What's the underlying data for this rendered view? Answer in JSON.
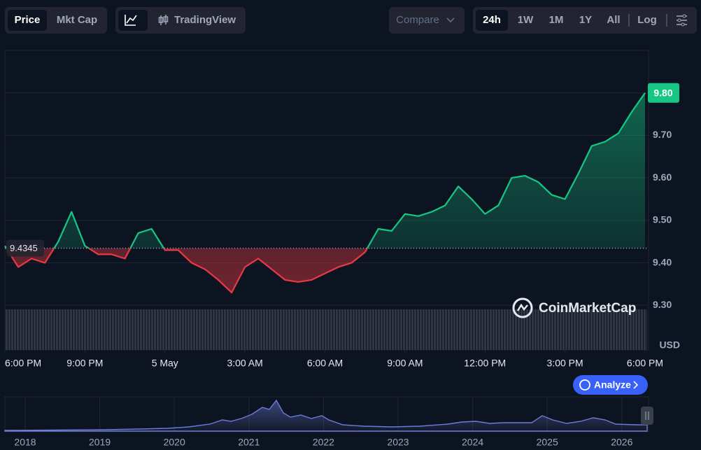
{
  "toolbar": {
    "price": "Price",
    "mkt_cap": "Mkt Cap",
    "tradingview": "TradingView",
    "compare": "Compare",
    "ranges": [
      "24h",
      "1W",
      "1M",
      "1Y",
      "All"
    ],
    "log": "Log"
  },
  "chart_data": {
    "type": "line",
    "x": [
      0,
      0.5,
      1,
      1.5,
      2,
      2.5,
      3,
      3.5,
      4,
      4.5,
      5,
      5.5,
      6,
      6.5,
      7,
      7.5,
      8,
      8.5,
      9,
      9.5,
      10,
      10.5,
      11,
      11.5,
      12,
      12.5,
      13,
      13.5,
      14,
      14.5,
      15,
      15.5,
      16,
      16.5,
      17,
      17.5,
      18,
      18.5,
      19,
      19.5,
      20,
      20.5,
      21,
      21.5,
      22,
      22.5,
      23,
      23.5,
      24
    ],
    "series": [
      {
        "color": "#16c784",
        "color_below": "#ea3943",
        "values": [
          9.44,
          9.39,
          9.41,
          9.4,
          9.45,
          9.52,
          9.44,
          9.42,
          9.42,
          9.41,
          9.47,
          9.48,
          9.43,
          9.43,
          9.4,
          9.385,
          9.36,
          9.33,
          9.39,
          9.41,
          9.385,
          9.36,
          9.355,
          9.36,
          9.375,
          9.39,
          9.4,
          9.425,
          9.48,
          9.475,
          9.515,
          9.51,
          9.52,
          9.535,
          9.58,
          9.55,
          9.515,
          9.535,
          9.6,
          9.605,
          9.59,
          9.56,
          9.55,
          9.61,
          9.675,
          9.685,
          9.705,
          9.755,
          9.8
        ]
      }
    ],
    "xlim": [
      0,
      24
    ],
    "xticks": [
      {
        "value": 0,
        "label": "6:00 PM"
      },
      {
        "value": 3,
        "label": "9:00 PM"
      },
      {
        "value": 6,
        "label": "5 May"
      },
      {
        "value": 9,
        "label": "3:00 AM"
      },
      {
        "value": 12,
        "label": "6:00 AM"
      },
      {
        "value": 15,
        "label": "9:00 AM"
      },
      {
        "value": 18,
        "label": "12:00 PM"
      },
      {
        "value": 21,
        "label": "3:00 PM"
      },
      {
        "value": 24,
        "label": "6:00 PM"
      }
    ],
    "ylim": [
      9.2,
      9.9
    ],
    "yticks": [
      {
        "value": 9.3,
        "label": "9.30"
      },
      {
        "value": 9.4,
        "label": "9.40"
      },
      {
        "value": 9.5,
        "label": "9.50"
      },
      {
        "value": 9.6,
        "label": "9.60"
      },
      {
        "value": 9.7,
        "label": "9.70"
      },
      {
        "value": 9.8,
        "label": "9.80"
      }
    ],
    "y_unit": "USD",
    "reference_line": 9.4345,
    "last_price": {
      "value": 9.8,
      "label": "9.80"
    },
    "grid": true
  },
  "watermark": "CoinMarketCap",
  "analyze": "Analyze",
  "overview": {
    "labels": [
      "2018",
      "2019",
      "2020",
      "2021",
      "2022",
      "2023",
      "2024",
      "2025",
      "2026"
    ]
  }
}
